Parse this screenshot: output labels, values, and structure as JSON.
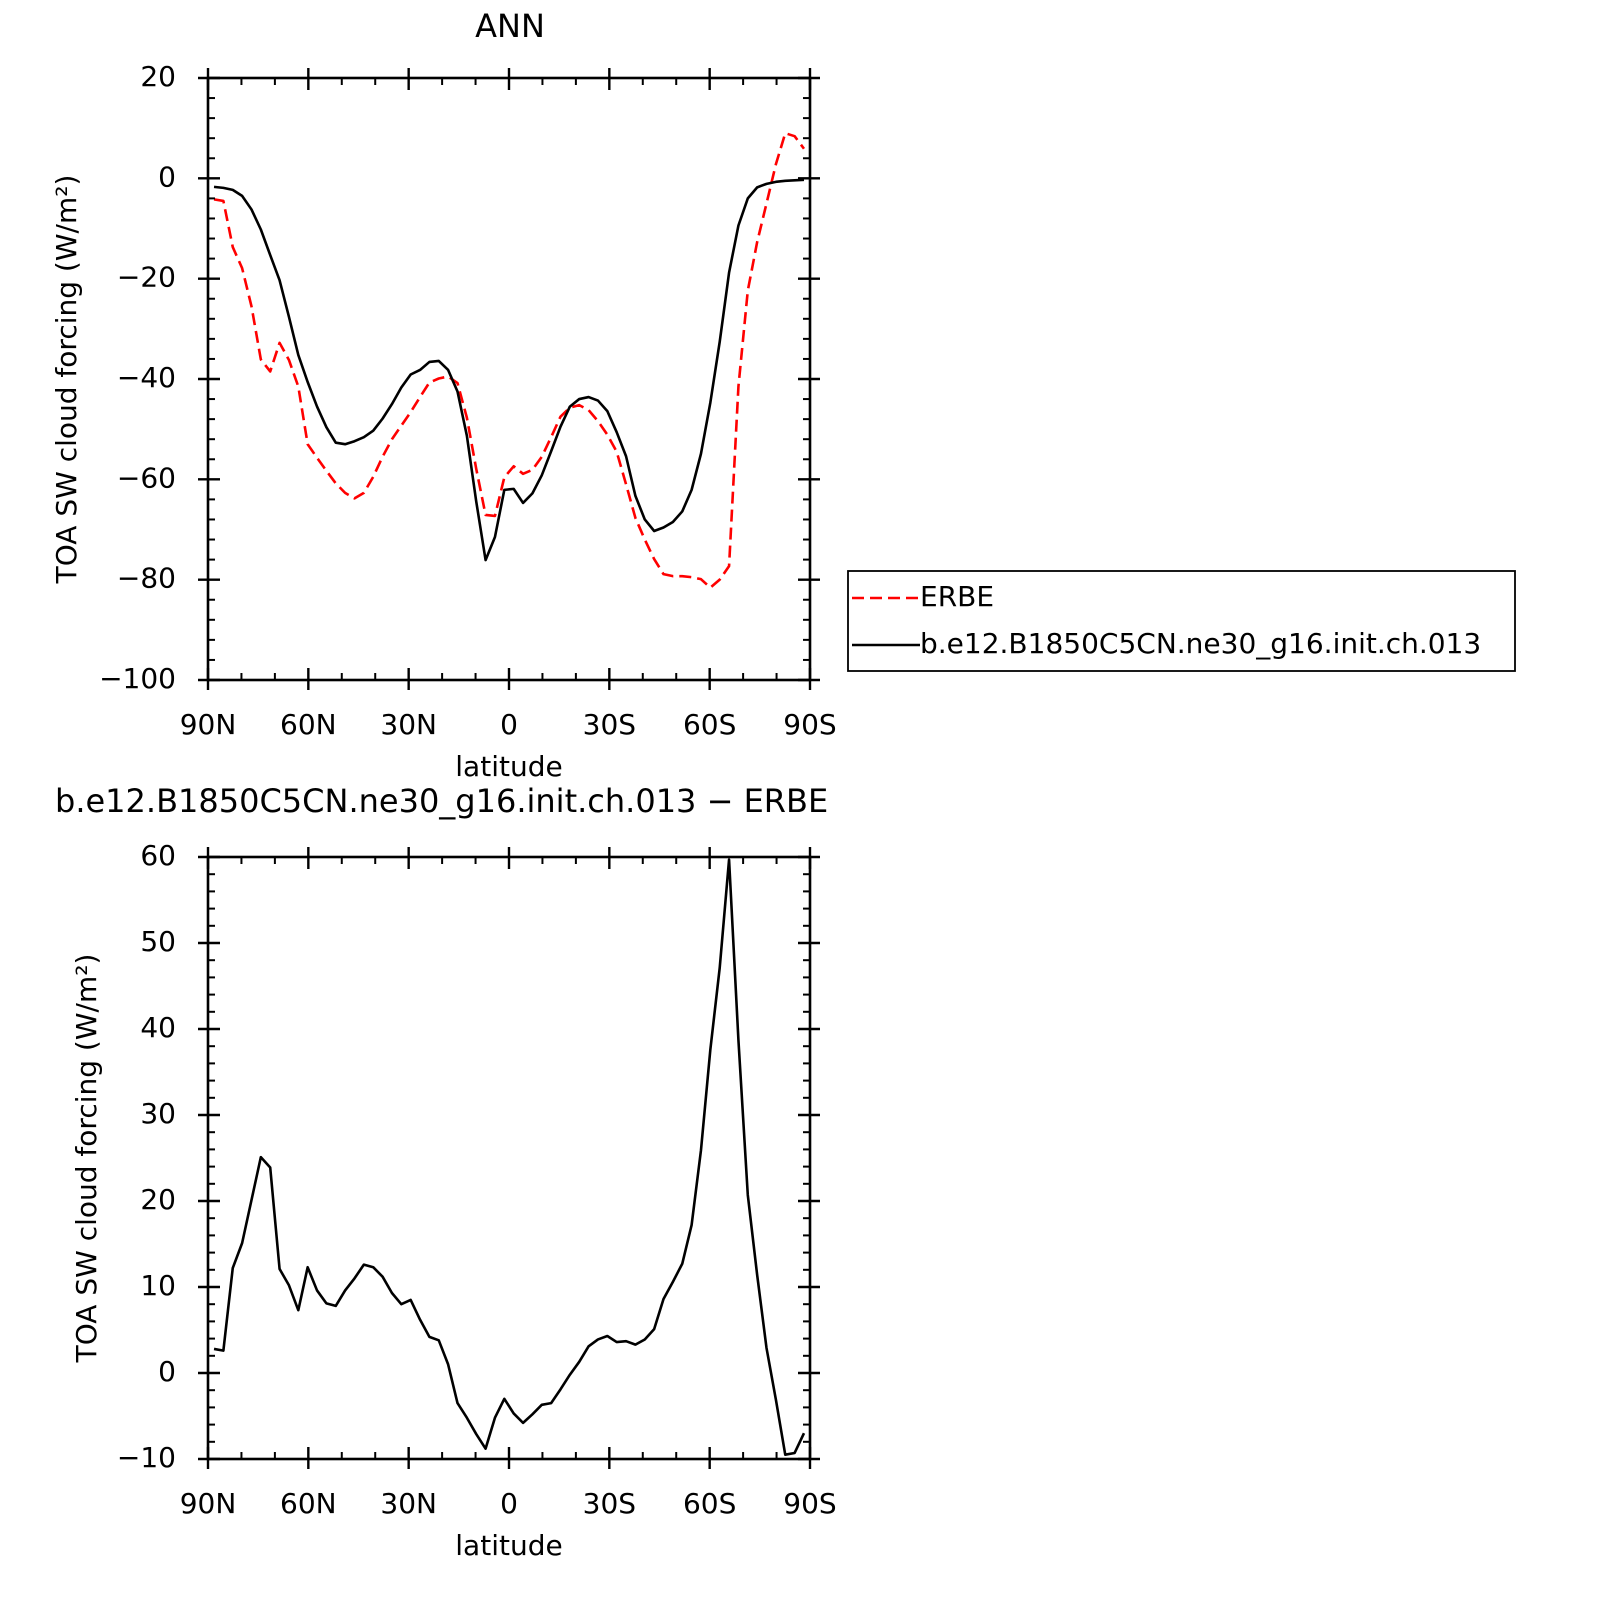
{
  "chart_data": [
    {
      "type": "line",
      "title": "ANN",
      "x_label": "latitude",
      "y_label": "TOA SW cloud forcing (W/m²)",
      "x": [
        88.2,
        85.4,
        82.6,
        79.8,
        77.0,
        74.2,
        71.4,
        68.6,
        65.8,
        63.0,
        60.2,
        57.4,
        54.6,
        51.8,
        49.0,
        46.2,
        43.4,
        40.6,
        37.8,
        35.0,
        32.2,
        29.4,
        26.6,
        23.8,
        21.0,
        18.2,
        15.4,
        12.6,
        9.8,
        7.0,
        4.2,
        1.4,
        -1.4,
        -4.2,
        -7.0,
        -9.8,
        -12.6,
        -15.4,
        -18.2,
        -21.0,
        -23.8,
        -26.6,
        -29.4,
        -32.2,
        -35.0,
        -37.8,
        -40.6,
        -43.4,
        -46.2,
        -49.0,
        -51.8,
        -54.6,
        -57.4,
        -60.2,
        -63.0,
        -65.8,
        -68.6,
        -71.4,
        -74.2,
        -77.0,
        -79.8,
        -82.6,
        -85.4,
        -88.2
      ],
      "series": [
        {
          "name": "ERBE",
          "color": "#ff0000",
          "line_style": "dashed",
          "values": [
            -4.2,
            -4.5,
            -13.7,
            -17.9,
            -25.5,
            -36.1,
            -38.5,
            -32.8,
            -36.2,
            -41.5,
            -53.0,
            -55.7,
            -58.3,
            -60.8,
            -62.7,
            -63.8,
            -62.7,
            -59.5,
            -55.5,
            -52.0,
            -49.3,
            -46.6,
            -43.6,
            -40.7,
            -39.9,
            -39.5,
            -40.8,
            -47.7,
            -57.9,
            -67.1,
            -67.3,
            -59.6,
            -57.4,
            -58.9,
            -58.1,
            -55.5,
            -51.6,
            -47.5,
            -45.7,
            -45.2,
            -46.2,
            -48.4,
            -51.1,
            -54.5,
            -61.0,
            -67.7,
            -72.0,
            -75.9,
            -78.9,
            -79.3,
            -79.3,
            -79.5,
            -79.9,
            -81.6,
            -80.0,
            -77.3,
            -41.5,
            -22.4,
            -12.7,
            -5.0,
            2.8,
            9.0,
            8.4,
            5.9
          ]
        },
        {
          "name": "b.e12.B1850C5CN.ne30_g16.init.ch.013",
          "color": "#000000",
          "line_style": "solid",
          "values": [
            -1.7,
            -1.9,
            -2.3,
            -3.5,
            -6.2,
            -10.2,
            -15.3,
            -20.3,
            -27.6,
            -35.2,
            -40.6,
            -45.5,
            -49.6,
            -52.7,
            -53.0,
            -52.4,
            -51.6,
            -50.3,
            -47.9,
            -45.0,
            -41.7,
            -39.1,
            -38.2,
            -36.6,
            -36.4,
            -38.2,
            -42.5,
            -51.3,
            -64.4,
            -76.1,
            -71.5,
            -62.1,
            -61.9,
            -64.7,
            -62.8,
            -59.2,
            -54.4,
            -49.5,
            -45.5,
            -44.0,
            -43.6,
            -44.3,
            -46.4,
            -50.6,
            -55.4,
            -63.3,
            -68.0,
            -70.3,
            -69.6,
            -68.5,
            -66.4,
            -62.1,
            -54.9,
            -44.7,
            -32.6,
            -18.8,
            -9.4,
            -4.0,
            -1.8,
            -1.1,
            -0.7,
            -0.5,
            -0.4,
            -0.3
          ]
        }
      ],
      "xlim": [
        90,
        -90
      ],
      "xticks": [
        {
          "value": 90,
          "label": "90N"
        },
        {
          "value": 60,
          "label": "60N"
        },
        {
          "value": 30,
          "label": "30N"
        },
        0,
        {
          "value": -30,
          "label": "30S"
        },
        {
          "value": -60,
          "label": "60S"
        },
        {
          "value": -90,
          "label": "90S"
        }
      ],
      "ylim": [
        -100,
        20
      ],
      "yticks": [
        20,
        0,
        {
          "value": -20,
          "label": "−20"
        },
        {
          "value": -40,
          "label": "−40"
        },
        {
          "value": -60,
          "label": "−60"
        },
        {
          "value": -80,
          "label": "−80"
        },
        {
          "value": -100,
          "label": "−100"
        }
      ],
      "x_minor": 3,
      "y_minor": 5,
      "legend": "right"
    },
    {
      "type": "line",
      "title": "b.e12.B1850C5CN.ne30_g16.init.ch.013 − ERBE",
      "x_label": "latitude",
      "y_label": "TOA SW cloud forcing (W/m²)",
      "x": [
        88.2,
        85.4,
        82.6,
        79.8,
        77.0,
        74.2,
        71.4,
        68.6,
        65.8,
        63.0,
        60.2,
        57.4,
        54.6,
        51.8,
        49.0,
        46.2,
        43.4,
        40.6,
        37.8,
        35.0,
        32.2,
        29.4,
        26.6,
        23.8,
        21.0,
        18.2,
        15.4,
        12.6,
        9.8,
        7.0,
        4.2,
        1.4,
        -1.4,
        -4.2,
        -7.0,
        -9.8,
        -12.6,
        -15.4,
        -18.2,
        -21.0,
        -23.8,
        -26.6,
        -29.4,
        -32.2,
        -35.0,
        -37.8,
        -40.6,
        -43.4,
        -46.2,
        -49.0,
        -51.8,
        -54.6,
        -57.4,
        -60.2,
        -63.0,
        -65.8,
        -68.6,
        -71.4,
        -74.2,
        -77.0,
        -79.8,
        -82.6,
        -85.4,
        -88.2
      ],
      "series": [
        {
          "color": "#000000",
          "line_style": "solid",
          "values": [
            2.8,
            2.6,
            12.2,
            15.1,
            20.1,
            25.1,
            23.9,
            12.1,
            10.2,
            7.3,
            12.3,
            9.6,
            8.1,
            7.8,
            9.6,
            11.0,
            12.6,
            12.3,
            11.2,
            9.3,
            8.0,
            8.5,
            6.2,
            4.2,
            3.8,
            1.0,
            -3.5,
            -5.2,
            -7.1,
            -8.8,
            -5.2,
            -3.0,
            -4.7,
            -5.8,
            -4.8,
            -3.7,
            -3.5,
            -1.9,
            -0.2,
            1.3,
            3.1,
            3.9,
            4.3,
            3.6,
            3.7,
            3.3,
            3.9,
            5.1,
            8.6,
            10.6,
            12.7,
            17.2,
            25.9,
            37.6,
            47.1,
            59.7,
            38.7,
            20.7,
            11.4,
            2.9,
            -3.1,
            -9.5,
            -9.3,
            -7.0
          ]
        }
      ],
      "xlim": [
        90,
        -90
      ],
      "xticks": [
        {
          "value": 90,
          "label": "90N"
        },
        {
          "value": 60,
          "label": "60N"
        },
        {
          "value": 30,
          "label": "30N"
        },
        0,
        {
          "value": -30,
          "label": "30S"
        },
        {
          "value": -60,
          "label": "60S"
        },
        {
          "value": -90,
          "label": "90S"
        }
      ],
      "ylim": [
        -10,
        60
      ],
      "yticks": [
        60,
        50,
        40,
        30,
        20,
        10,
        0,
        {
          "value": -10,
          "label": "−10"
        }
      ],
      "x_minor": 3,
      "y_minor": 5
    }
  ]
}
